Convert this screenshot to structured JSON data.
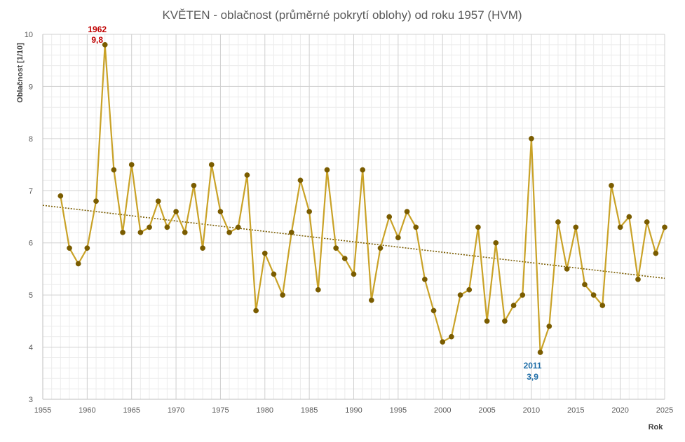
{
  "chart_data": {
    "type": "line",
    "title": "KVĚTEN - oblačnost (průměrné pokrytí oblohy) od roku 1957 (HVM)",
    "xlabel": "Rok",
    "ylabel": "Oblačnost  [1/10]",
    "xlim": [
      1955,
      2025
    ],
    "ylim": [
      3,
      10
    ],
    "x_ticks": [
      "1955",
      "1960",
      "1965",
      "1970",
      "1975",
      "1980",
      "1985",
      "1990",
      "1995",
      "2000",
      "2005",
      "2010",
      "2015",
      "2020",
      "2025"
    ],
    "y_ticks": [
      "3",
      "4",
      "5",
      "6",
      "7",
      "8",
      "9",
      "10"
    ],
    "grid": true,
    "series": [
      {
        "years": [
          1957,
          1958,
          1959,
          1960,
          1961,
          1962,
          1963,
          1964,
          1965,
          1966,
          1967,
          1968,
          1969,
          1970,
          1971,
          1972,
          1973,
          1974,
          1975,
          1976,
          1977,
          1978,
          1979,
          1980,
          1981,
          1982,
          1983,
          1984,
          1985,
          1986,
          1987,
          1988,
          1989,
          1990,
          1991,
          1992,
          1993,
          1994,
          1995,
          1996,
          1997,
          1998,
          1999,
          2000,
          2001,
          2002,
          2003,
          2004,
          2005,
          2006,
          2007,
          2008,
          2009,
          2010,
          2011,
          2012,
          2013,
          2014,
          2015,
          2016,
          2017,
          2018,
          2019,
          2020,
          2021,
          2022,
          2023,
          2024,
          2025
        ],
        "values": [
          6.9,
          5.9,
          5.6,
          5.9,
          6.8,
          9.8,
          7.4,
          6.2,
          7.5,
          6.2,
          6.3,
          6.8,
          6.3,
          6.6,
          6.2,
          7.1,
          5.9,
          7.5,
          6.6,
          6.2,
          6.3,
          7.3,
          4.7,
          5.8,
          5.4,
          5.0,
          6.2,
          7.2,
          6.6,
          5.1,
          7.4,
          5.9,
          5.7,
          5.4,
          7.4,
          4.9,
          5.9,
          6.5,
          6.1,
          6.6,
          6.3,
          5.3,
          4.7,
          4.1,
          4.2,
          5.0,
          5.1,
          6.3,
          4.5,
          6.0,
          4.5,
          4.8,
          5.0,
          8.0,
          3.9,
          4.4,
          6.4,
          5.5,
          6.3,
          5.2,
          5.0,
          4.8,
          7.1,
          6.3,
          6.5,
          5.3,
          6.4,
          5.8,
          6.3
        ],
        "line_color": "#C9A227",
        "marker_color": "#7A5C00"
      }
    ],
    "trendline": {
      "type": "linear",
      "style": "dotted",
      "color": "#7A5C00",
      "from": [
        1955,
        6.72
      ],
      "to": [
        2025,
        5.32
      ]
    },
    "annotations": [
      {
        "year_label": "1962",
        "value_label": "9,8",
        "x": 1962,
        "y": 9.8,
        "color": "#C00000",
        "placement": "above"
      },
      {
        "year_label": "2011",
        "value_label": "3,9",
        "x": 2011,
        "y": 3.9,
        "color": "#1F6EA8",
        "placement": "below"
      }
    ]
  }
}
